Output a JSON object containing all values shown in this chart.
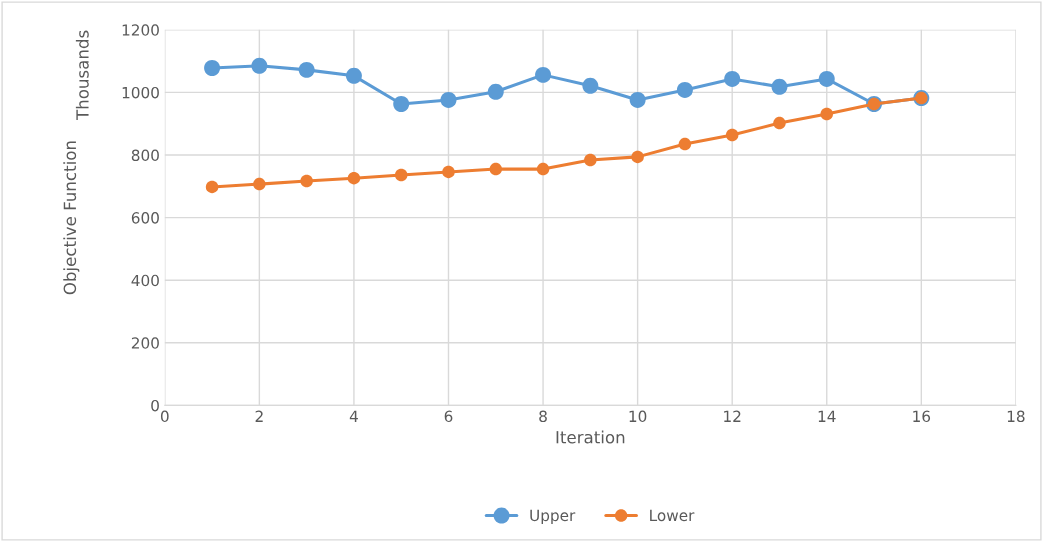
{
  "chart_data": {
    "type": "line",
    "xlabel": "Iteration",
    "ylabel": "Objective Function",
    "annotations": [
      "Thousands"
    ],
    "x": [
      1,
      2,
      3,
      4,
      5,
      6,
      7,
      8,
      9,
      10,
      11,
      12,
      13,
      14,
      15,
      16
    ],
    "series": [
      {
        "name": "Upper",
        "color": "#5b9bd5",
        "values": [
          1078,
          1085,
          1072,
          1053,
          963,
          976,
          1002,
          1056,
          1021,
          976,
          1008,
          1043,
          1018,
          1043,
          963,
          982
        ]
      },
      {
        "name": "Lower",
        "color": "#ed7d31",
        "values": [
          698,
          707,
          717,
          726,
          736,
          746,
          755,
          755,
          784,
          794,
          835,
          864,
          902,
          931,
          963,
          982
        ]
      }
    ],
    "xlim": [
      0,
      18
    ],
    "xticks": [
      0,
      2,
      4,
      6,
      8,
      10,
      12,
      14,
      16,
      18
    ],
    "ylim": [
      0,
      1200
    ],
    "yticks": [
      0,
      200,
      400,
      600,
      800,
      1000,
      1200
    ],
    "grid": true,
    "legend": "bottom",
    "marker": "circle",
    "line_style": "solid"
  }
}
